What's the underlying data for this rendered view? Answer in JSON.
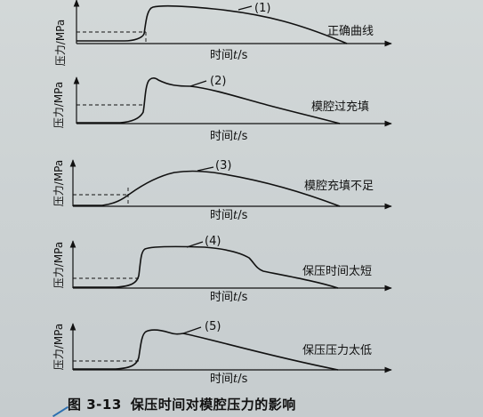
{
  "panels": [
    {
      "id": "p1",
      "label": "(1)",
      "description": "正确曲线",
      "ylabel": "压力/MPa",
      "xlabel_prefix": "时间",
      "xlabel_var": "t",
      "xlabel_unit": "/s"
    },
    {
      "id": "p2",
      "label": "(2)",
      "description": "模腔过充填",
      "ylabel": "压力/MPa",
      "xlabel_prefix": "时间",
      "xlabel_var": "t",
      "xlabel_unit": "/s"
    },
    {
      "id": "p3",
      "label": "(3)",
      "description": "模腔充填不足",
      "ylabel": "压力/MPa",
      "xlabel_prefix": "时间",
      "xlabel_var": "t",
      "xlabel_unit": "/s"
    },
    {
      "id": "p4",
      "label": "(4)",
      "description": "保压时间太短",
      "ylabel": "压力/MPa",
      "xlabel_prefix": "时间",
      "xlabel_var": "t",
      "xlabel_unit": "/s"
    },
    {
      "id": "p5",
      "label": "(5)",
      "description": "保压压力太低",
      "ylabel": "压力/MPa",
      "xlabel_prefix": "时间",
      "xlabel_var": "t",
      "xlabel_unit": "/s"
    }
  ],
  "caption": {
    "number": "图 3-13",
    "title": "保压时间对模腔压力的影响"
  }
}
